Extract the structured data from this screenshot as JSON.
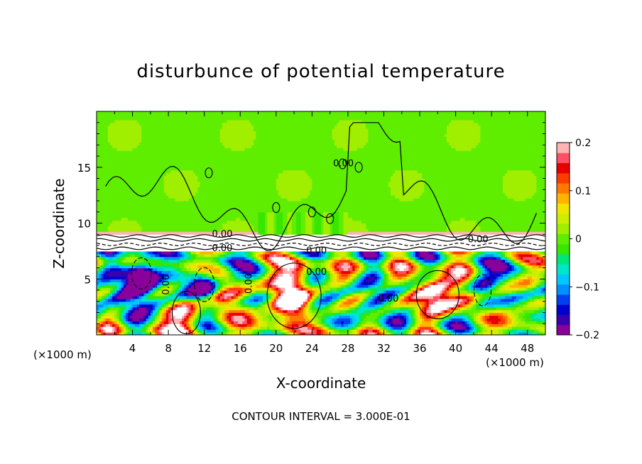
{
  "chart_data": {
    "type": "heatmap",
    "title": "disturbunce of potential temperature",
    "xlabel": "X-coordinate",
    "ylabel": "Z-coordinate",
    "x_unit": "(×1000 m)",
    "z_unit": "(×1000 m)",
    "xlim": [
      0,
      50
    ],
    "ylim": [
      0,
      20
    ],
    "x_ticks": [
      4,
      8,
      12,
      16,
      20,
      24,
      28,
      32,
      36,
      40,
      44,
      48
    ],
    "y_ticks": [
      5,
      10,
      15
    ],
    "colorbar": {
      "range": [
        -0.2,
        0.2
      ],
      "ticks": [
        "0.2",
        "0.1",
        "0",
        "−0.1",
        "−0.2"
      ],
      "colors": [
        "#8a009a",
        "#3a00b0",
        "#0000cc",
        "#0040f0",
        "#0090ff",
        "#00c8ff",
        "#00e6c8",
        "#00e678",
        "#38e600",
        "#60ee00",
        "#a0ee00",
        "#ccee00",
        "#f2e600",
        "#ffb400",
        "#ff7800",
        "#ff3c00",
        "#e60000",
        "#ff5064",
        "#ffb4b4"
      ]
    },
    "contour_labels": [
      {
        "text": "0.00",
        "x": 14.0,
        "z": 9.0
      },
      {
        "text": "0.00",
        "x": 14.0,
        "z": 7.7
      },
      {
        "text": "0.00",
        "x": 24.5,
        "z": 7.5
      },
      {
        "text": "0.00",
        "x": 24.5,
        "z": 5.6
      },
      {
        "text": "0.00",
        "x": 7.8,
        "z": 4.5,
        "rotated": true
      },
      {
        "text": "0.00",
        "x": 17.0,
        "z": 4.6,
        "rotated": true
      },
      {
        "text": "0.00",
        "x": 27.5,
        "z": 15.3
      },
      {
        "text": "0.00",
        "x": 32.5,
        "z": 3.2
      },
      {
        "text": "0.00",
        "x": 42.5,
        "z": 8.5
      }
    ],
    "contour_interval_note": "CONTOUR INTERVAL = 3.000E-01",
    "grid": false
  }
}
